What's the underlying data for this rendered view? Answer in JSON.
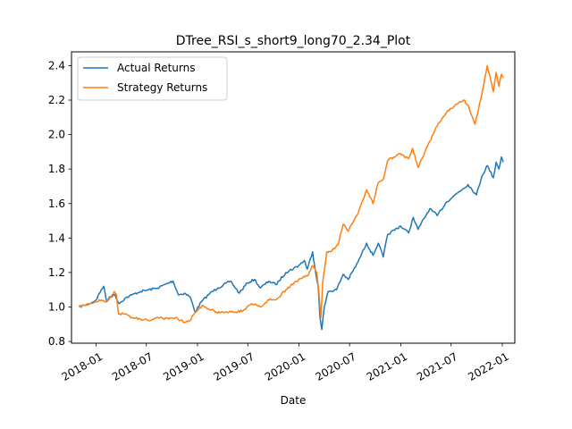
{
  "chart_data": {
    "type": "line",
    "title": "DTree_RSI_s_short9_long70_2.34_Plot",
    "xlabel": "Date",
    "ylabel": "",
    "xlim": [
      "2017-10-05",
      "2022-02-15"
    ],
    "ylim": [
      0.79,
      2.48
    ],
    "x_ticks": [
      "2018-01",
      "2018-07",
      "2019-01",
      "2019-07",
      "2020-01",
      "2020-07",
      "2021-01",
      "2021-07",
      "2022-01"
    ],
    "y_ticks": [
      "0.8",
      "1.0",
      "1.2",
      "1.4",
      "1.6",
      "1.8",
      "2.0",
      "2.2",
      "2.4"
    ],
    "legend_position": "top-left",
    "grid": false,
    "series": [
      {
        "name": "Actual Returns",
        "color": "#1f77b4",
        "points": [
          [
            "2017-11-01",
            1.0
          ],
          [
            "2017-11-20",
            1.01
          ],
          [
            "2017-12-10",
            1.02
          ],
          [
            "2018-01-01",
            1.04
          ],
          [
            "2018-01-20",
            1.1
          ],
          [
            "2018-01-29",
            1.12
          ],
          [
            "2018-02-08",
            1.03
          ],
          [
            "2018-02-20",
            1.06
          ],
          [
            "2018-03-10",
            1.07
          ],
          [
            "2018-03-25",
            1.02
          ],
          [
            "2018-04-15",
            1.05
          ],
          [
            "2018-05-10",
            1.07
          ],
          [
            "2018-06-10",
            1.09
          ],
          [
            "2018-07-10",
            1.1
          ],
          [
            "2018-08-10",
            1.11
          ],
          [
            "2018-09-20",
            1.14
          ],
          [
            "2018-10-05",
            1.15
          ],
          [
            "2018-10-25",
            1.07
          ],
          [
            "2018-11-15",
            1.08
          ],
          [
            "2018-12-05",
            1.06
          ],
          [
            "2018-12-24",
            0.97
          ],
          [
            "2019-01-15",
            1.03
          ],
          [
            "2019-02-15",
            1.08
          ],
          [
            "2019-03-15",
            1.11
          ],
          [
            "2019-04-30",
            1.15
          ],
          [
            "2019-05-31",
            1.08
          ],
          [
            "2019-06-30",
            1.14
          ],
          [
            "2019-07-25",
            1.16
          ],
          [
            "2019-08-15",
            1.11
          ],
          [
            "2019-09-15",
            1.15
          ],
          [
            "2019-10-10",
            1.13
          ],
          [
            "2019-11-15",
            1.2
          ],
          [
            "2019-12-31",
            1.24
          ],
          [
            "2020-01-20",
            1.27
          ],
          [
            "2020-01-31",
            1.22
          ],
          [
            "2020-02-19",
            1.32
          ],
          [
            "2020-03-01",
            1.2
          ],
          [
            "2020-03-10",
            1.12
          ],
          [
            "2020-03-16",
            0.95
          ],
          [
            "2020-03-23",
            0.87
          ],
          [
            "2020-04-01",
            1.0
          ],
          [
            "2020-04-15",
            1.09
          ],
          [
            "2020-05-15",
            1.1
          ],
          [
            "2020-06-08",
            1.19
          ],
          [
            "2020-06-26",
            1.16
          ],
          [
            "2020-07-31",
            1.26
          ],
          [
            "2020-08-31",
            1.37
          ],
          [
            "2020-09-23",
            1.3
          ],
          [
            "2020-10-12",
            1.37
          ],
          [
            "2020-10-30",
            1.29
          ],
          [
            "2020-11-15",
            1.42
          ],
          [
            "2020-12-31",
            1.47
          ],
          [
            "2021-01-29",
            1.43
          ],
          [
            "2021-02-15",
            1.52
          ],
          [
            "2021-03-04",
            1.45
          ],
          [
            "2021-04-15",
            1.57
          ],
          [
            "2021-05-12",
            1.53
          ],
          [
            "2021-06-15",
            1.61
          ],
          [
            "2021-07-15",
            1.65
          ],
          [
            "2021-08-31",
            1.71
          ],
          [
            "2021-09-30",
            1.65
          ],
          [
            "2021-10-20",
            1.76
          ],
          [
            "2021-11-08",
            1.82
          ],
          [
            "2021-11-30",
            1.75
          ],
          [
            "2021-12-10",
            1.84
          ],
          [
            "2021-12-20",
            1.8
          ],
          [
            "2021-12-29",
            1.87
          ],
          [
            "2022-01-05",
            1.84
          ]
        ]
      },
      {
        "name": "Strategy Returns",
        "color": "#ff7f0e",
        "points": [
          [
            "2017-11-01",
            1.0
          ],
          [
            "2017-11-20",
            1.01
          ],
          [
            "2017-12-10",
            1.02
          ],
          [
            "2018-01-01",
            1.03
          ],
          [
            "2018-01-20",
            1.04
          ],
          [
            "2018-02-01",
            1.03
          ],
          [
            "2018-02-15",
            1.04
          ],
          [
            "2018-02-28",
            1.07
          ],
          [
            "2018-03-08",
            1.09
          ],
          [
            "2018-03-16",
            1.07
          ],
          [
            "2018-03-23",
            0.96
          ],
          [
            "2018-04-10",
            0.96
          ],
          [
            "2018-05-10",
            0.94
          ],
          [
            "2018-06-10",
            0.93
          ],
          [
            "2018-07-10",
            0.92
          ],
          [
            "2018-08-10",
            0.94
          ],
          [
            "2018-09-20",
            0.93
          ],
          [
            "2018-10-15",
            0.94
          ],
          [
            "2018-11-15",
            0.91
          ],
          [
            "2018-12-05",
            0.92
          ],
          [
            "2018-12-20",
            0.96
          ],
          [
            "2019-01-01",
            0.98
          ],
          [
            "2019-01-20",
            1.01
          ],
          [
            "2019-02-10",
            0.99
          ],
          [
            "2019-03-10",
            0.97
          ],
          [
            "2019-04-10",
            0.97
          ],
          [
            "2019-05-15",
            0.97
          ],
          [
            "2019-06-15",
            0.98
          ],
          [
            "2019-07-15",
            1.02
          ],
          [
            "2019-08-15",
            1.0
          ],
          [
            "2019-09-15",
            1.04
          ],
          [
            "2019-10-15",
            1.05
          ],
          [
            "2019-11-15",
            1.1
          ],
          [
            "2019-12-31",
            1.16
          ],
          [
            "2020-01-31",
            1.18
          ],
          [
            "2020-02-19",
            1.24
          ],
          [
            "2020-03-05",
            1.2
          ],
          [
            "2020-03-12",
            1.1
          ],
          [
            "2020-03-20",
            0.94
          ],
          [
            "2020-03-26",
            1.14
          ],
          [
            "2020-04-10",
            1.32
          ],
          [
            "2020-04-25",
            1.32
          ],
          [
            "2020-05-20",
            1.36
          ],
          [
            "2020-06-08",
            1.48
          ],
          [
            "2020-06-26",
            1.44
          ],
          [
            "2020-07-31",
            1.54
          ],
          [
            "2020-08-31",
            1.68
          ],
          [
            "2020-09-23",
            1.6
          ],
          [
            "2020-10-12",
            1.72
          ],
          [
            "2020-10-30",
            1.74
          ],
          [
            "2020-11-15",
            1.85
          ],
          [
            "2020-12-31",
            1.89
          ],
          [
            "2021-01-29",
            1.86
          ],
          [
            "2021-02-12",
            1.92
          ],
          [
            "2021-03-04",
            1.81
          ],
          [
            "2021-04-15",
            1.96
          ],
          [
            "2021-05-12",
            2.05
          ],
          [
            "2021-06-15",
            2.13
          ],
          [
            "2021-07-15",
            2.17
          ],
          [
            "2021-08-15",
            2.2
          ],
          [
            "2021-08-31",
            2.17
          ],
          [
            "2021-09-25",
            2.06
          ],
          [
            "2021-10-20",
            2.24
          ],
          [
            "2021-11-08",
            2.4
          ],
          [
            "2021-11-30",
            2.25
          ],
          [
            "2021-12-10",
            2.36
          ],
          [
            "2021-12-20",
            2.28
          ],
          [
            "2021-12-29",
            2.35
          ],
          [
            "2022-01-05",
            2.33
          ]
        ]
      }
    ]
  }
}
